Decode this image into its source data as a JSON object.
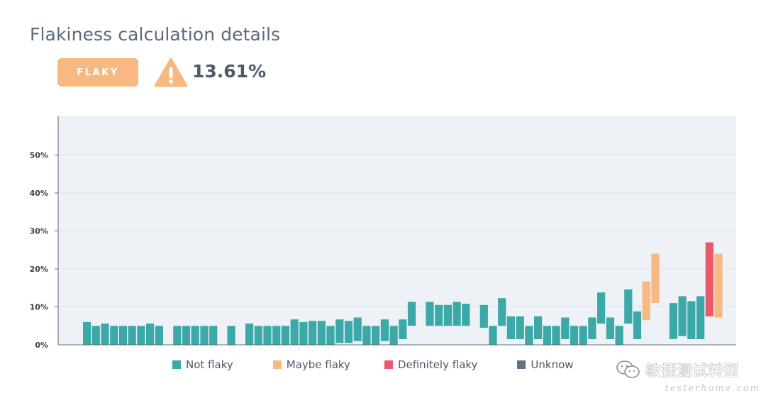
{
  "header": {
    "title": "Flakiness calculation details",
    "status_badge": "FLAKY",
    "status_icon": "warning-triangle-icon",
    "flakiness_percent": "13.61%"
  },
  "colors": {
    "not_flaky": "#3aa9a7",
    "maybe_flaky": "#f7b882",
    "definitely_flaky": "#e85a6a",
    "unknown": "#5f7386",
    "plot_bg": "#eef1f6",
    "badge": "#f7b882"
  },
  "legend": {
    "not_flaky": "Not flaky",
    "maybe_flaky": "Maybe flaky",
    "definitely_flaky": "Definitely flaky",
    "unknown": "Unknow"
  },
  "watermark": {
    "text": "敏捷测试转型",
    "sub": "testerhome.com"
  },
  "chart_data": {
    "type": "bar",
    "y_tick_labels": [
      "0%",
      "10%",
      "20%",
      "30%",
      "40%",
      "50%"
    ],
    "ylim": [
      0,
      60
    ],
    "grid": true,
    "legend_position": "bottom",
    "bars": [
      {
        "low": 0,
        "high": 6,
        "status": "not_flaky"
      },
      {
        "low": 0,
        "high": 5,
        "status": "not_flaky"
      },
      {
        "low": 0,
        "high": 5.6,
        "status": "not_flaky"
      },
      {
        "low": 0,
        "high": 5,
        "status": "not_flaky"
      },
      {
        "low": 0,
        "high": 5,
        "status": "not_flaky"
      },
      {
        "low": 0,
        "high": 5,
        "status": "not_flaky"
      },
      {
        "low": 0,
        "high": 5,
        "status": "not_flaky"
      },
      {
        "low": 0,
        "high": 5.6,
        "status": "not_flaky"
      },
      {
        "low": 0,
        "high": 5,
        "status": "not_flaky"
      },
      null,
      {
        "low": 0,
        "high": 5,
        "status": "not_flaky"
      },
      {
        "low": 0,
        "high": 5,
        "status": "not_flaky"
      },
      {
        "low": 0,
        "high": 5,
        "status": "not_flaky"
      },
      {
        "low": 0,
        "high": 5,
        "status": "not_flaky"
      },
      {
        "low": 0,
        "high": 5,
        "status": "not_flaky"
      },
      null,
      {
        "low": 0,
        "high": 5,
        "status": "not_flaky"
      },
      null,
      {
        "low": 0,
        "high": 5.6,
        "status": "not_flaky"
      },
      {
        "low": 0,
        "high": 5,
        "status": "not_flaky"
      },
      {
        "low": 0,
        "high": 5,
        "status": "not_flaky"
      },
      {
        "low": 0,
        "high": 5,
        "status": "not_flaky"
      },
      {
        "low": 0,
        "high": 5,
        "status": "not_flaky"
      },
      {
        "low": 0,
        "high": 6.7,
        "status": "not_flaky"
      },
      {
        "low": 0,
        "high": 6,
        "status": "not_flaky"
      },
      {
        "low": 0,
        "high": 6.3,
        "status": "not_flaky"
      },
      {
        "low": 0,
        "high": 6.3,
        "status": "not_flaky"
      },
      {
        "low": 0,
        "high": 5,
        "status": "not_flaky"
      },
      {
        "low": 0.5,
        "high": 6.7,
        "status": "not_flaky"
      },
      {
        "low": 0.5,
        "high": 6.3,
        "status": "not_flaky"
      },
      {
        "low": 1,
        "high": 7.2,
        "status": "not_flaky"
      },
      {
        "low": 0,
        "high": 5,
        "status": "not_flaky"
      },
      {
        "low": 0,
        "high": 5,
        "status": "not_flaky"
      },
      {
        "low": 1,
        "high": 6.7,
        "status": "not_flaky"
      },
      {
        "low": 0,
        "high": 5,
        "status": "not_flaky"
      },
      {
        "low": 1.5,
        "high": 6.7,
        "status": "not_flaky"
      },
      {
        "low": 5,
        "high": 11.3,
        "status": "not_flaky"
      },
      null,
      {
        "low": 5,
        "high": 11.3,
        "status": "not_flaky"
      },
      {
        "low": 5,
        "high": 10.5,
        "status": "not_flaky"
      },
      {
        "low": 5,
        "high": 10.5,
        "status": "not_flaky"
      },
      {
        "low": 5,
        "high": 11.3,
        "status": "not_flaky"
      },
      {
        "low": 5,
        "high": 10.8,
        "status": "not_flaky"
      },
      null,
      {
        "low": 4.5,
        "high": 10.5,
        "status": "not_flaky"
      },
      {
        "low": 0,
        "high": 5,
        "status": "not_flaky"
      },
      {
        "low": 5,
        "high": 12.3,
        "status": "not_flaky"
      },
      {
        "low": 1.5,
        "high": 7.5,
        "status": "not_flaky"
      },
      {
        "low": 1.5,
        "high": 7.5,
        "status": "not_flaky"
      },
      {
        "low": 0,
        "high": 5,
        "status": "not_flaky"
      },
      {
        "low": 1.5,
        "high": 7.5,
        "status": "not_flaky"
      },
      {
        "low": 0,
        "high": 5,
        "status": "not_flaky"
      },
      {
        "low": 0,
        "high": 5,
        "status": "not_flaky"
      },
      {
        "low": 1.5,
        "high": 7.2,
        "status": "not_flaky"
      },
      {
        "low": 0,
        "high": 5,
        "status": "not_flaky"
      },
      {
        "low": 0,
        "high": 5,
        "status": "not_flaky"
      },
      {
        "low": 1.5,
        "high": 7.2,
        "status": "not_flaky"
      },
      {
        "low": 5.6,
        "high": 13.8,
        "status": "not_flaky"
      },
      {
        "low": 1.5,
        "high": 7.2,
        "status": "not_flaky"
      },
      {
        "low": 0,
        "high": 5,
        "status": "not_flaky"
      },
      {
        "low": 5.6,
        "high": 14.6,
        "status": "not_flaky"
      },
      {
        "low": 1.5,
        "high": 8.8,
        "status": "not_flaky"
      },
      {
        "low": 6.5,
        "high": 16.7,
        "status": "maybe_flaky"
      },
      {
        "low": 11,
        "high": 24,
        "status": "maybe_flaky"
      },
      null,
      {
        "low": 1.5,
        "high": 11,
        "status": "not_flaky"
      },
      {
        "low": 2.3,
        "high": 12.8,
        "status": "not_flaky"
      },
      {
        "low": 1.5,
        "high": 11.5,
        "status": "not_flaky"
      },
      {
        "low": 1.5,
        "high": 12.8,
        "status": "not_flaky"
      },
      {
        "low": 7.5,
        "high": 27,
        "status": "definitely_flaky"
      },
      {
        "low": 7.2,
        "high": 24,
        "status": "maybe_flaky"
      }
    ]
  }
}
